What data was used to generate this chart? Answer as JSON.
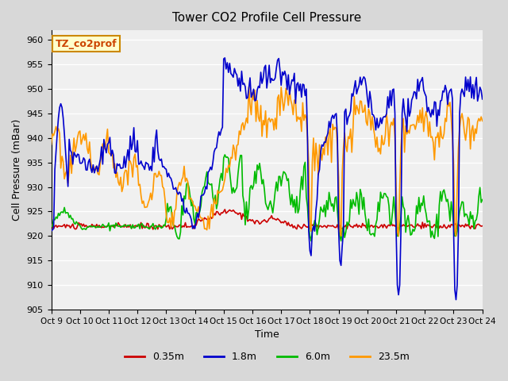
{
  "title": "Tower CO2 Profile Cell Pressure",
  "xlabel": "Time",
  "ylabel": "Cell Pressure (mBar)",
  "ylim": [
    905,
    962
  ],
  "yticks": [
    905,
    910,
    915,
    920,
    925,
    930,
    935,
    940,
    945,
    950,
    955,
    960
  ],
  "xlim": [
    0,
    360
  ],
  "plot_bg": "#f0f0f0",
  "fig_bg": "#d8d8d8",
  "legend_label": "TZ_co2prof",
  "legend_box_color": "#ffffcc",
  "legend_box_edge": "#cc8800",
  "series": [
    {
      "label": "0.35m",
      "color": "#cc0000",
      "lw": 1.2
    },
    {
      "label": "1.8m",
      "color": "#0000cc",
      "lw": 1.2
    },
    {
      "label": "6.0m",
      "color": "#00bb00",
      "lw": 1.2
    },
    {
      "label": "23.5m",
      "color": "#ff9900",
      "lw": 1.2
    }
  ],
  "xtick_labels": [
    "Oct 9",
    "Oct 10",
    "Oct 11",
    "Oct 12",
    "Oct 13",
    "Oct 14",
    "Oct 15",
    "Oct 16",
    "Oct 17",
    "Oct 18",
    "Oct 19",
    "Oct 20",
    "Oct 21",
    "Oct 22",
    "Oct 23",
    "Oct 24"
  ],
  "xtick_positions": [
    0,
    24,
    48,
    72,
    96,
    120,
    144,
    168,
    192,
    216,
    240,
    264,
    288,
    312,
    336,
    360
  ]
}
